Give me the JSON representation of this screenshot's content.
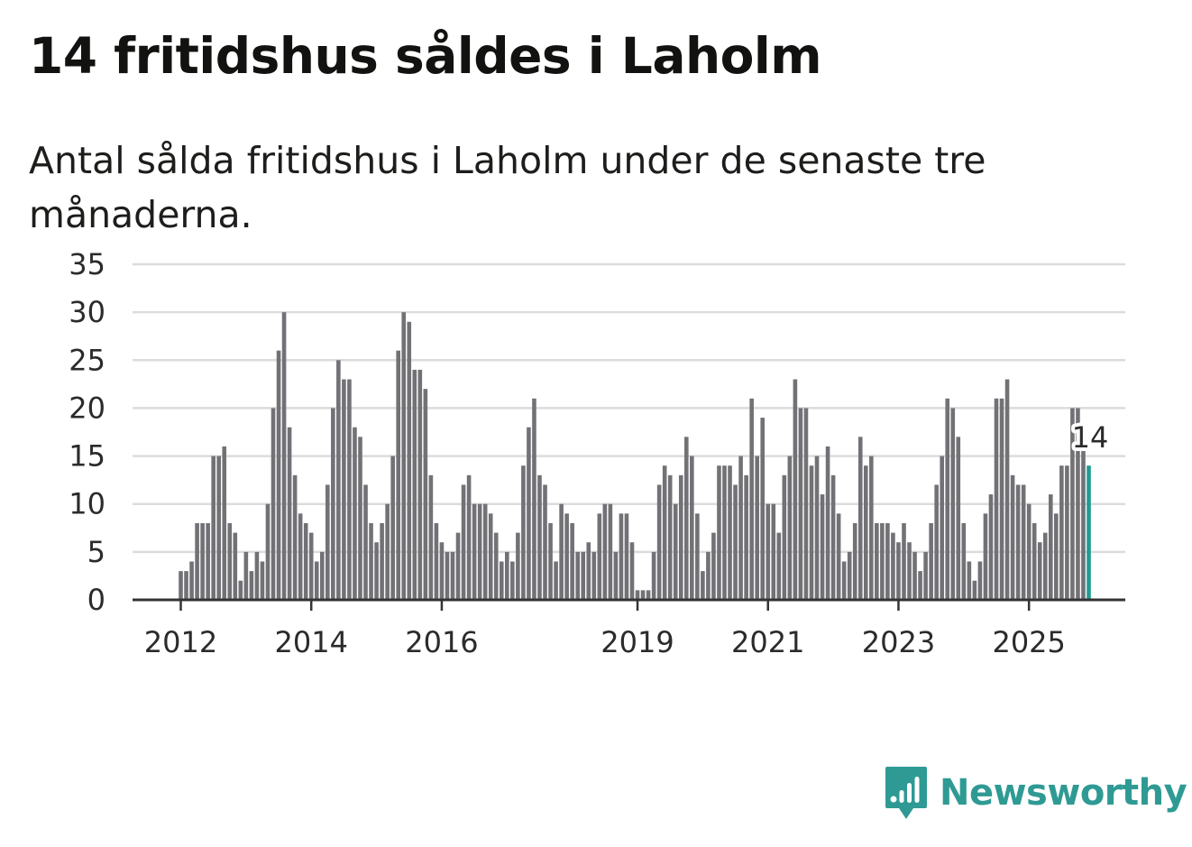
{
  "header": {
    "title": "14 fritidshus såldes i Laholm",
    "subtitle": "Antal sålda fritidshus i Laholm under de senaste tre månaderna."
  },
  "colors": {
    "bar": "#727176",
    "highlight": "#1f9c92",
    "grid": "#dcdcdc",
    "axis": "#333333",
    "brand": "#2f9a94"
  },
  "chart_data": {
    "type": "bar",
    "title": "14 fritidshus såldes i Laholm",
    "subtitle": "Antal sålda fritidshus i Laholm under de senaste tre månaderna.",
    "xlabel": "",
    "ylabel": "",
    "ylim": [
      0,
      35
    ],
    "yticks": [
      0,
      5,
      10,
      15,
      20,
      25,
      30,
      35
    ],
    "xticks": [
      {
        "label": "2012",
        "index": 0
      },
      {
        "label": "2014",
        "index": 24
      },
      {
        "label": "2016",
        "index": 48
      },
      {
        "label": "2019",
        "index": 84
      },
      {
        "label": "2021",
        "index": 108
      },
      {
        "label": "2023",
        "index": 132
      },
      {
        "label": "2025",
        "index": 156
      }
    ],
    "first_index": 0,
    "values": [
      3,
      3,
      4,
      8,
      8,
      8,
      15,
      15,
      16,
      8,
      7,
      2,
      5,
      3,
      5,
      4,
      10,
      20,
      26,
      30,
      18,
      13,
      9,
      8,
      7,
      4,
      5,
      12,
      20,
      25,
      23,
      23,
      18,
      17,
      12,
      8,
      6,
      8,
      10,
      15,
      26,
      30,
      29,
      24,
      24,
      22,
      13,
      8,
      6,
      5,
      5,
      7,
      12,
      13,
      10,
      10,
      10,
      9,
      7,
      4,
      5,
      4,
      7,
      14,
      18,
      21,
      13,
      12,
      8,
      4,
      10,
      9,
      8,
      5,
      5,
      6,
      5,
      9,
      10,
      10,
      5,
      9,
      9,
      6,
      1,
      1,
      1,
      5,
      12,
      14,
      13,
      10,
      13,
      17,
      15,
      9,
      3,
      5,
      7,
      14,
      14,
      14,
      12,
      15,
      13,
      21,
      15,
      19,
      10,
      10,
      7,
      13,
      15,
      23,
      20,
      20,
      14,
      15,
      11,
      16,
      13,
      9,
      4,
      5,
      8,
      17,
      14,
      15,
      8,
      8,
      8,
      7,
      6,
      8,
      6,
      5,
      3,
      5,
      8,
      12,
      15,
      21,
      20,
      17,
      8,
      4,
      2,
      4,
      9,
      11,
      21,
      21,
      23,
      13,
      12,
      12,
      10,
      8,
      6,
      7,
      11,
      9,
      14,
      14,
      20,
      20,
      18,
      14
    ],
    "highlight_last": true,
    "annotation": {
      "text": "14",
      "index": 167
    }
  },
  "branding": {
    "name": "Newsworthy",
    "icon": "newsworthy-logo-icon"
  }
}
